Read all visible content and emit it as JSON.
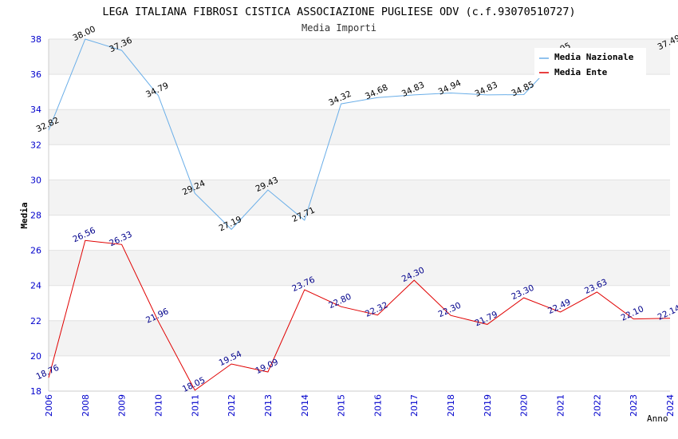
{
  "chart_data": {
    "type": "line",
    "title": "LEGA ITALIANA FIBROSI CISTICA ASSOCIAZIONE PUGLIESE ODV (c.f.93070510727)",
    "subtitle": "Media Importi",
    "xlabel": "Anno",
    "ylabel": "Media",
    "ylim": [
      18,
      38
    ],
    "yticks": [
      18,
      20,
      22,
      24,
      26,
      28,
      30,
      32,
      34,
      36,
      38
    ],
    "x": [
      "2006",
      "2008",
      "2009",
      "2010",
      "2011",
      "2012",
      "2013",
      "2014",
      "2015",
      "2016",
      "2017",
      "2018",
      "2019",
      "2020",
      "2021",
      "2022",
      "2023",
      "2024"
    ],
    "series": [
      {
        "name": "Media Nazionale",
        "color": "#6aaee8",
        "label_color": "#000000",
        "values": [
          32.82,
          38.0,
          37.36,
          34.79,
          29.24,
          27.19,
          29.43,
          27.71,
          34.32,
          34.68,
          34.83,
          34.94,
          34.83,
          34.85,
          37.05,
          null,
          null,
          37.49
        ]
      },
      {
        "name": "Media Ente",
        "color": "#e00000",
        "label_color": "#00008b",
        "values": [
          18.76,
          26.56,
          26.33,
          21.96,
          18.05,
          19.54,
          19.09,
          23.76,
          22.8,
          22.32,
          24.3,
          22.3,
          21.79,
          23.3,
          22.49,
          23.63,
          22.1,
          22.14
        ]
      }
    ],
    "grid": true,
    "legend": "top-right",
    "band_colors": [
      "#f3f3f3",
      "#ffffff"
    ],
    "tick_color": "#0000cc"
  }
}
